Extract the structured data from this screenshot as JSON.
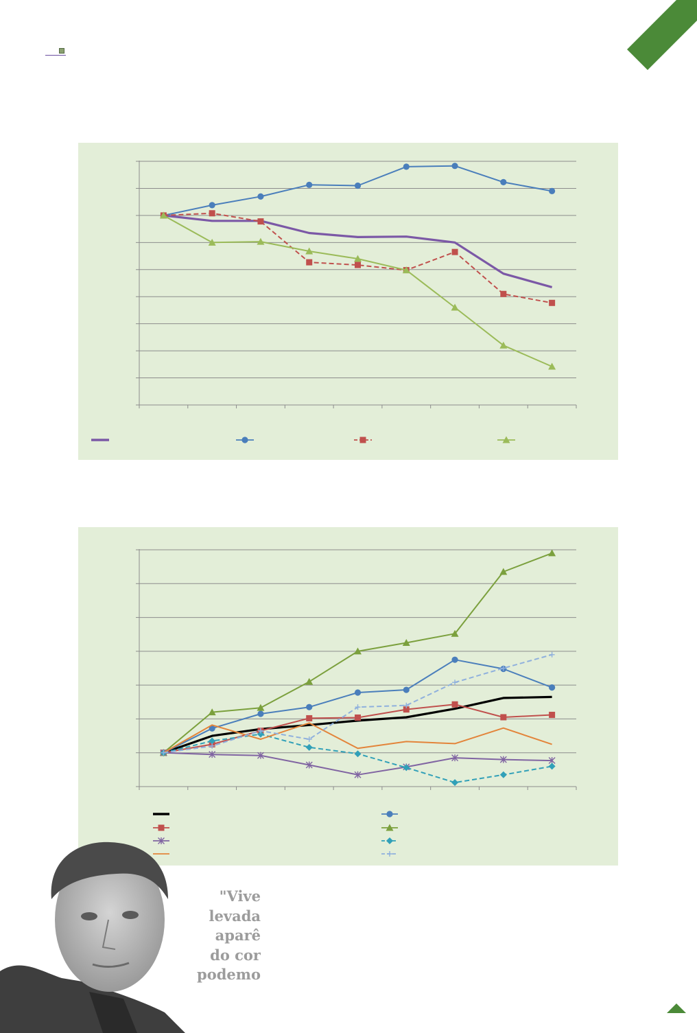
{
  "colors": {
    "ribbon": "#4b8a38",
    "panel_bg": "#e3eed8",
    "grid": "#8c8c8c",
    "arrow": "#4b8a38"
  },
  "icons": {
    "header": "small-square-bullet-icon",
    "corner": "diagonal-ribbon-icon",
    "nav": "up-arrow-icon"
  },
  "quote": {
    "line1": "\"Vive",
    "line2": "levada",
    "line3": "aparê",
    "line4": "do cor",
    "line5": "podemo"
  },
  "chart_data": [
    {
      "type": "line",
      "x": [
        1,
        2,
        3,
        4,
        5,
        6,
        7,
        8,
        9
      ],
      "ylim": [
        0,
        9
      ],
      "grid": true,
      "legend_position": "bottom",
      "series": [
        {
          "color": "#7b58a6",
          "style": "solid-thick",
          "marker": "none",
          "values": [
            7.0,
            6.8,
            6.8,
            6.35,
            6.2,
            6.22,
            6.0,
            4.85,
            4.35
          ]
        },
        {
          "color": "#4a7ebb",
          "style": "solid",
          "marker": "circle",
          "values": [
            7.0,
            7.38,
            7.7,
            8.13,
            8.1,
            8.8,
            8.83,
            8.23,
            7.9
          ]
        },
        {
          "color": "#c0504d",
          "style": "dashed",
          "marker": "square",
          "values": [
            7.0,
            7.08,
            6.78,
            5.27,
            5.17,
            4.98,
            5.65,
            4.1,
            3.77
          ]
        },
        {
          "color": "#9bbb59",
          "style": "solid",
          "marker": "triangle",
          "values": [
            7.0,
            6.0,
            6.03,
            5.68,
            5.4,
            4.98,
            3.6,
            2.2,
            1.42
          ]
        }
      ]
    },
    {
      "type": "line",
      "x": [
        1,
        2,
        3,
        4,
        5,
        6,
        7,
        8,
        9
      ],
      "ylim": [
        0,
        7
      ],
      "grid": true,
      "legend_position": "bottom",
      "series": [
        {
          "color": "#000000",
          "style": "solid-thick",
          "marker": "none",
          "values": [
            1.0,
            1.5,
            1.7,
            1.82,
            1.95,
            2.05,
            2.3,
            2.62,
            2.65
          ]
        },
        {
          "color": "#4a7ebb",
          "style": "solid",
          "marker": "circle",
          "values": [
            1.0,
            1.72,
            2.15,
            2.35,
            2.78,
            2.86,
            3.75,
            3.48,
            2.93
          ]
        },
        {
          "color": "#c0504d",
          "style": "solid",
          "marker": "square",
          "values": [
            1.0,
            1.25,
            1.65,
            2.02,
            2.04,
            2.28,
            2.43,
            2.05,
            2.12
          ]
        },
        {
          "color": "#7ba03d",
          "style": "solid",
          "marker": "triangle",
          "values": [
            1.0,
            2.2,
            2.33,
            3.1,
            4.0,
            4.25,
            4.52,
            6.35,
            6.9
          ]
        },
        {
          "color": "#8064a2",
          "style": "solid",
          "marker": "x-cross",
          "values": [
            1.0,
            0.95,
            0.92,
            0.64,
            0.35,
            0.58,
            0.85,
            0.8,
            0.77
          ]
        },
        {
          "color": "#31a0b8",
          "style": "dashed",
          "marker": "diamond",
          "values": [
            1.0,
            1.35,
            1.55,
            1.16,
            0.97,
            0.56,
            0.12,
            0.35,
            0.6
          ]
        },
        {
          "color": "#e3843a",
          "style": "solid",
          "marker": "none",
          "values": [
            1.0,
            1.82,
            1.4,
            1.88,
            1.13,
            1.33,
            1.27,
            1.73,
            1.25
          ]
        },
        {
          "color": "#8fb0dd",
          "style": "dashed",
          "marker": "plus",
          "values": [
            1.0,
            1.2,
            1.65,
            1.4,
            2.35,
            2.4,
            3.08,
            3.5,
            3.9
          ]
        }
      ]
    }
  ]
}
